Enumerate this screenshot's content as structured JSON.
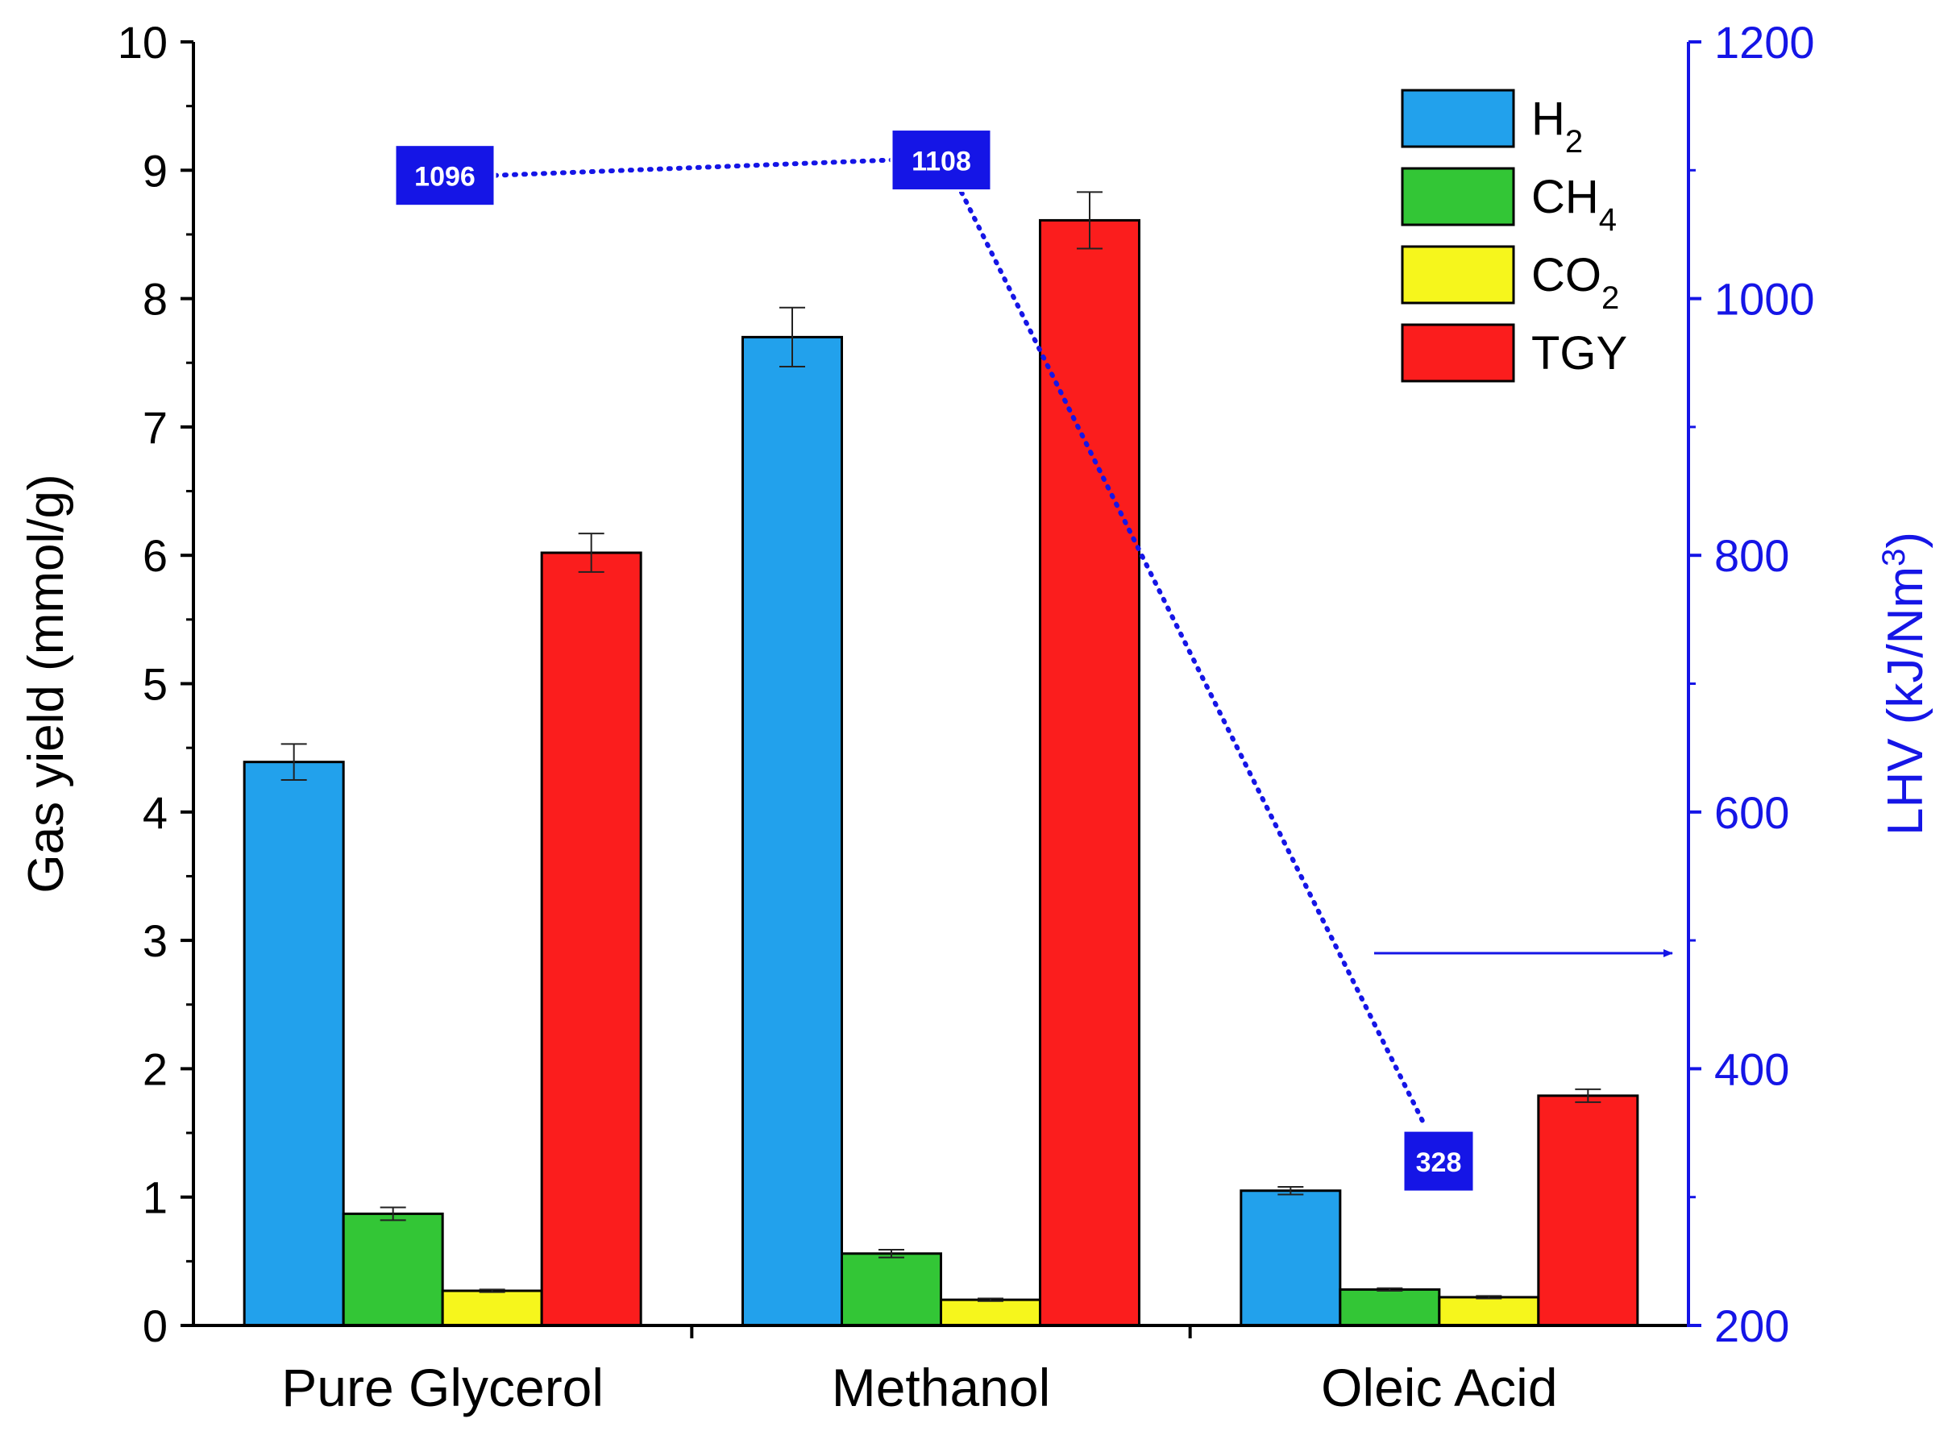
{
  "chart_data": {
    "type": "bar",
    "categories": [
      "Pure Glycerol",
      "Methanol",
      "Oleic Acid"
    ],
    "series": [
      {
        "name": "H",
        "sub": "2",
        "color": "#22a1ec",
        "values": [
          4.39,
          7.7,
          1.05
        ],
        "errors": [
          0.14,
          0.23,
          0.03
        ]
      },
      {
        "name": "CH",
        "sub": "4",
        "color": "#33c636",
        "values": [
          0.87,
          0.56,
          0.28
        ],
        "errors": [
          0.05,
          0.03,
          0.01
        ]
      },
      {
        "name": "CO",
        "sub": "2",
        "color": "#f6f61c",
        "values": [
          0.27,
          0.2,
          0.22
        ],
        "errors": [
          0.01,
          0.01,
          0.01
        ]
      },
      {
        "name": "TGY",
        "sub": "",
        "color": "#fb1d1d",
        "values": [
          6.02,
          8.61,
          1.79
        ],
        "errors": [
          0.15,
          0.22,
          0.05
        ]
      }
    ],
    "y_left": {
      "label": "Gas yield (mmol/g)",
      "range": [
        0,
        10
      ],
      "ticks": [
        "0",
        "1",
        "2",
        "3",
        "4",
        "5",
        "6",
        "7",
        "8",
        "9",
        "10"
      ]
    },
    "y_right": {
      "label_main": "LHV (kJ/Nm",
      "label_sup": "3",
      "label_end": ")",
      "range": [
        200,
        1200
      ],
      "ticks": [
        "200",
        "400",
        "600",
        "800",
        "1000",
        "1200"
      ],
      "color": "#1515e6"
    },
    "lhv_line": {
      "values": [
        1096,
        1108,
        328
      ],
      "labels": [
        "1096",
        "1108",
        "328"
      ],
      "color": "#1515e6",
      "style": "dotted"
    },
    "legend_position": "top-right",
    "grid": false
  }
}
